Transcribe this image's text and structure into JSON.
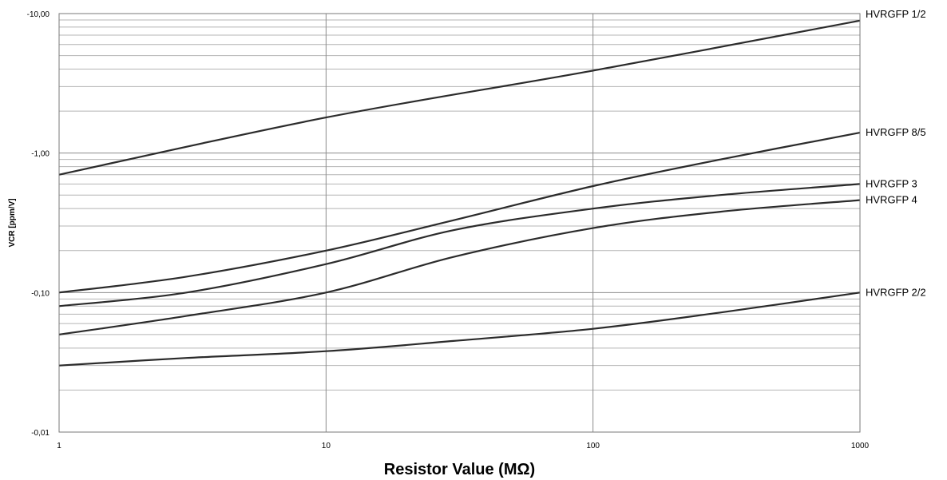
{
  "chart_data": {
    "type": "line",
    "title": "",
    "xlabel": "Resistor Value (MΩ)",
    "ylabel": "VCR [ppm/V]",
    "x_scale": "log",
    "y_scale": "log",
    "y_inverted": true,
    "xlim": [
      1,
      1000
    ],
    "ylim": [
      -0.01,
      -10
    ],
    "x_ticks": [
      1,
      10,
      100,
      1000
    ],
    "x_tick_labels": [
      "1",
      "10",
      "100",
      "1000"
    ],
    "y_ticks": [
      -0.01,
      -0.1,
      -1,
      -10
    ],
    "y_tick_labels": [
      "-0,01",
      "-0,10",
      "-1,00",
      "-10,00"
    ],
    "grid": true,
    "legend": "direct labels at right end of each line",
    "series": [
      {
        "name": "HVRGFP 1/2",
        "x": [
          1,
          10,
          100,
          1000
        ],
        "y": [
          -0.7,
          -1.8,
          -3.9,
          -8.9
        ]
      },
      {
        "name": "HVRGFP 8/5",
        "x": [
          1,
          3,
          10,
          30,
          100,
          300,
          1000
        ],
        "y": [
          -0.1,
          -0.13,
          -0.2,
          -0.33,
          -0.58,
          -0.9,
          -1.4
        ]
      },
      {
        "name": "HVRGFP 3",
        "x": [
          1,
          3,
          10,
          30,
          100,
          300,
          1000
        ],
        "y": [
          -0.08,
          -0.1,
          -0.16,
          -0.28,
          -0.4,
          -0.5,
          -0.6
        ]
      },
      {
        "name": "HVRGFP 4",
        "x": [
          1,
          3,
          10,
          30,
          100,
          300,
          1000
        ],
        "y": [
          -0.05,
          -0.068,
          -0.1,
          -0.18,
          -0.29,
          -0.38,
          -0.46
        ]
      },
      {
        "name": "HVRGFP 2/2",
        "x": [
          1,
          3,
          10,
          30,
          100,
          300,
          1000
        ],
        "y": [
          -0.03,
          -0.034,
          -0.038,
          -0.045,
          -0.055,
          -0.072,
          -0.1
        ]
      }
    ]
  }
}
